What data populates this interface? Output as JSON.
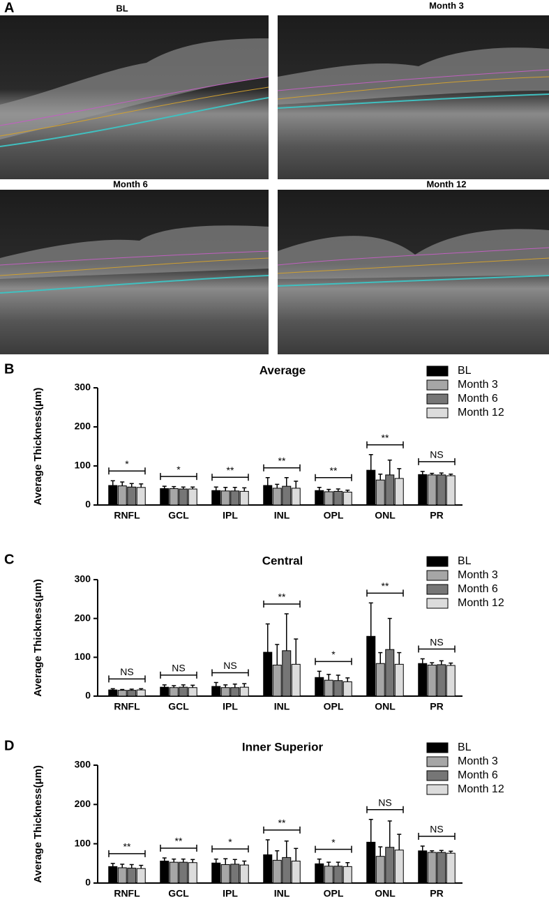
{
  "panel_a": {
    "label": "A",
    "images": [
      {
        "label": "BL"
      },
      {
        "label": "Month 3"
      },
      {
        "label": "Month 6"
      },
      {
        "label": "Month 12"
      }
    ]
  },
  "chart_data": [
    {
      "type": "bar",
      "panel_label": "B",
      "title": "Average",
      "y_label": "Average Thickness(μm)",
      "categories": [
        "RNFL",
        "GCL",
        "IPL",
        "INL",
        "OPL",
        "ONL",
        "PR"
      ],
      "series": [
        {
          "name": "BL",
          "color": "#000000",
          "values": [
            50,
            42,
            37,
            50,
            37,
            89,
            78
          ],
          "errors": [
            12,
            6,
            9,
            20,
            8,
            40,
            8
          ]
        },
        {
          "name": "Month 3",
          "color": "#a6a6a6",
          "values": [
            49,
            42,
            36,
            43,
            34,
            64,
            77
          ],
          "errors": [
            10,
            5,
            9,
            10,
            6,
            15,
            4
          ]
        },
        {
          "name": "Month 6",
          "color": "#767676",
          "values": [
            46,
            41,
            36,
            48,
            35,
            77,
            77
          ],
          "errors": [
            9,
            5,
            9,
            22,
            6,
            38,
            5
          ]
        },
        {
          "name": "Month 12",
          "color": "#dcdcdc",
          "values": [
            45,
            41,
            35,
            43,
            33,
            68,
            75
          ],
          "errors": [
            9,
            5,
            9,
            18,
            5,
            25,
            4
          ]
        }
      ],
      "annotations": [
        "*",
        "*",
        "**",
        "**",
        "**",
        "**",
        "NS"
      ],
      "ylim": [
        0,
        300
      ],
      "yticks": [
        0,
        100,
        200,
        300
      ]
    },
    {
      "type": "bar",
      "panel_label": "C",
      "title": "Central",
      "y_label": "Average Thickness(μm)",
      "categories": [
        "RNFL",
        "GCL",
        "IPL",
        "INL",
        "OPL",
        "ONL",
        "PR"
      ],
      "series": [
        {
          "name": "BL",
          "color": "#000000",
          "values": [
            16,
            23,
            25,
            113,
            48,
            154,
            84
          ],
          "errors": [
            3,
            6,
            10,
            73,
            16,
            86,
            12
          ]
        },
        {
          "name": "Month 3",
          "color": "#a6a6a6",
          "values": [
            15,
            22,
            22,
            80,
            41,
            84,
            80
          ],
          "errors": [
            2,
            5,
            7,
            53,
            15,
            28,
            6
          ]
        },
        {
          "name": "Month 6",
          "color": "#767676",
          "values": [
            15,
            23,
            22,
            117,
            40,
            120,
            81
          ],
          "errors": [
            3,
            6,
            9,
            95,
            14,
            80,
            10
          ]
        },
        {
          "name": "Month 12",
          "color": "#dcdcdc",
          "values": [
            16,
            22,
            23,
            82,
            37,
            82,
            79
          ],
          "errors": [
            3,
            6,
            9,
            65,
            10,
            30,
            6
          ]
        }
      ],
      "annotations": [
        "NS",
        "NS",
        "NS",
        "**",
        "*",
        "**",
        "NS"
      ],
      "ylim": [
        0,
        300
      ],
      "yticks": [
        0,
        100,
        200,
        300
      ]
    },
    {
      "type": "bar",
      "panel_label": "D",
      "title": "Inner Superior",
      "y_label": "Average Thickness(μm)",
      "categories": [
        "RNFL",
        "GCL",
        "IPL",
        "INL",
        "OPL",
        "ONL",
        "PR"
      ],
      "series": [
        {
          "name": "BL",
          "color": "#000000",
          "values": [
            42,
            56,
            51,
            72,
            49,
            104,
            82
          ],
          "errors": [
            8,
            8,
            10,
            38,
            12,
            58,
            12
          ]
        },
        {
          "name": "Month 3",
          "color": "#a6a6a6",
          "values": [
            39,
            53,
            47,
            58,
            43,
            68,
            78
          ],
          "errors": [
            9,
            8,
            15,
            24,
            10,
            24,
            4
          ]
        },
        {
          "name": "Month 6",
          "color": "#767676",
          "values": [
            38,
            53,
            48,
            65,
            43,
            91,
            78
          ],
          "errors": [
            9,
            8,
            12,
            42,
            10,
            67,
            5
          ]
        },
        {
          "name": "Month 12",
          "color": "#dcdcdc",
          "values": [
            37,
            52,
            46,
            56,
            42,
            84,
            76
          ],
          "errors": [
            8,
            8,
            10,
            32,
            10,
            40,
            5
          ]
        }
      ],
      "annotations": [
        "**",
        "**",
        "*",
        "**",
        "*",
        "NS",
        "NS"
      ],
      "ylim": [
        0,
        300
      ],
      "yticks": [
        0,
        100,
        200,
        300
      ]
    }
  ]
}
